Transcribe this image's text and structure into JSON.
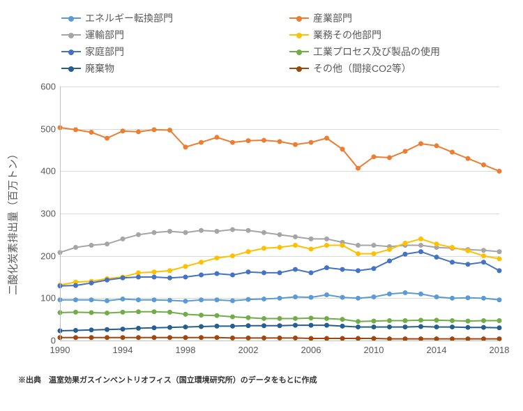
{
  "chart": {
    "type": "line",
    "background_color": "#ffffff",
    "grid_color": "#d9d9d9",
    "axis_color": "#bfbfbf",
    "tick_font_color": "#595959",
    "tick_font_size": 13,
    "legend_font_size": 14,
    "ylabel": "二酸化炭素排出量（百万トン）",
    "ylabel_font_size": 15,
    "line_width": 2,
    "marker_radius": 3.5,
    "x": {
      "min": 1990,
      "max": 2018,
      "ticks": [
        1990,
        1994,
        1998,
        2002,
        2006,
        2010,
        2014,
        2018
      ]
    },
    "y": {
      "min": 0,
      "max": 600,
      "ticks": [
        0,
        100,
        200,
        300,
        400,
        500,
        600
      ]
    },
    "years": [
      1990,
      1991,
      1992,
      1993,
      1994,
      1995,
      1996,
      1997,
      1998,
      1999,
      2000,
      2001,
      2002,
      2003,
      2004,
      2005,
      2006,
      2007,
      2008,
      2009,
      2010,
      2011,
      2012,
      2013,
      2014,
      2015,
      2016,
      2017,
      2018
    ],
    "series": [
      {
        "id": "energy",
        "label": "エネルギー転換部門",
        "color": "#5b9bd5",
        "values": [
          96,
          96,
          96,
          94,
          98,
          96,
          96,
          95,
          93,
          96,
          96,
          94,
          97,
          98,
          100,
          103,
          102,
          108,
          102,
          100,
          103,
          110,
          113,
          110,
          103,
          100,
          101,
          100,
          96
        ]
      },
      {
        "id": "industry",
        "label": "産業部門",
        "color": "#ed7d31",
        "values": [
          503,
          498,
          492,
          478,
          495,
          493,
          498,
          497,
          457,
          468,
          480,
          468,
          472,
          473,
          470,
          463,
          468,
          478,
          452,
          407,
          434,
          432,
          447,
          465,
          460,
          445,
          430,
          415,
          400
        ]
      },
      {
        "id": "transport",
        "label": "運輸部門",
        "color": "#a5a5a5",
        "values": [
          208,
          220,
          225,
          228,
          240,
          250,
          255,
          258,
          255,
          260,
          258,
          262,
          260,
          255,
          250,
          245,
          240,
          240,
          232,
          225,
          225,
          222,
          225,
          225,
          220,
          218,
          215,
          213,
          210
        ]
      },
      {
        "id": "commercial",
        "label": "業務その他部門",
        "color": "#ffc000",
        "values": [
          131,
          138,
          140,
          146,
          150,
          160,
          162,
          165,
          175,
          185,
          195,
          200,
          210,
          218,
          220,
          225,
          216,
          225,
          225,
          205,
          205,
          215,
          230,
          240,
          228,
          220,
          212,
          200,
          193
        ]
      },
      {
        "id": "household",
        "label": "家庭部門",
        "color": "#4472c4",
        "values": [
          129,
          130,
          136,
          143,
          148,
          150,
          150,
          148,
          150,
          155,
          158,
          155,
          162,
          160,
          160,
          168,
          160,
          172,
          168,
          165,
          170,
          188,
          204,
          210,
          197,
          185,
          180,
          185,
          165
        ]
      },
      {
        "id": "process",
        "label": "工業プロセス及び製品の使用",
        "color": "#70ad47",
        "values": [
          66,
          67,
          66,
          65,
          67,
          68,
          68,
          67,
          62,
          60,
          59,
          56,
          54,
          52,
          52,
          52,
          53,
          52,
          50,
          45,
          46,
          47,
          47,
          48,
          48,
          47,
          46,
          47,
          47
        ]
      },
      {
        "id": "waste",
        "label": "廃棄物",
        "color": "#255e91",
        "values": [
          23,
          24,
          25,
          26,
          27,
          29,
          30,
          31,
          32,
          33,
          34,
          34,
          35,
          35,
          35,
          36,
          36,
          36,
          34,
          32,
          32,
          32,
          32,
          33,
          32,
          32,
          31,
          31,
          30
        ]
      },
      {
        "id": "other",
        "label": "その他（間接CO2等）",
        "color": "#9e480e",
        "values": [
          7,
          7,
          7,
          7,
          7,
          7,
          7,
          7,
          7,
          7,
          7,
          6,
          6,
          6,
          6,
          6,
          5,
          5,
          5,
          5,
          5,
          4,
          4,
          4,
          4,
          4,
          4,
          4,
          4
        ]
      }
    ]
  },
  "footnote": "※出典　温室効果ガスインベントリオフィス（国立環境研究所）のデータをもとに作成"
}
